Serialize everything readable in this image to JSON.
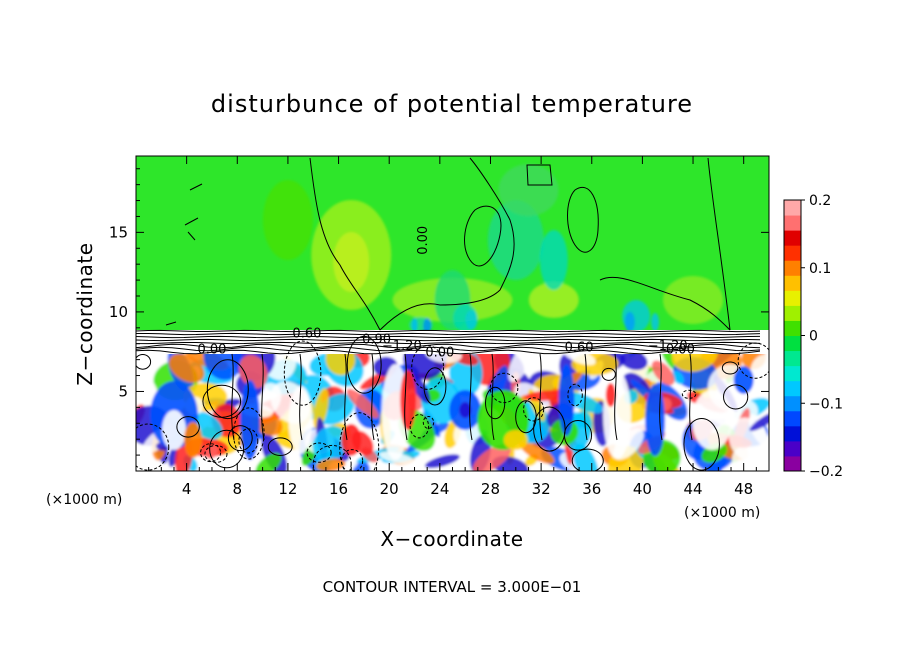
{
  "chart_data": {
    "type": "heatmap",
    "title": "disturbunce of potential temperature",
    "xlabel": "X−coordinate",
    "ylabel": "Z−coordinate",
    "x_unit": "(×1000 m)",
    "y_unit": "(×1000 m)",
    "xlim": [
      0,
      50
    ],
    "ylim": [
      0,
      19.8
    ],
    "x_ticks": [
      4,
      8,
      12,
      16,
      20,
      24,
      28,
      32,
      36,
      40,
      44,
      48
    ],
    "y_ticks": [
      5,
      10,
      15
    ],
    "colorbar": {
      "range": [
        -0.2,
        0.2
      ],
      "tick_values": [
        0.2,
        0.1,
        0,
        -0.1,
        -0.2
      ],
      "tick_labels": [
        "0.2",
        "0.1",
        "0",
        "−0.1",
        "−0.2"
      ],
      "colors": [
        "#8a00a0",
        "#4a00c8",
        "#0010d8",
        "#0048ff",
        "#0090ff",
        "#00c8ff",
        "#00e8d0",
        "#00e890",
        "#00e040",
        "#40e000",
        "#a0f000",
        "#e8f000",
        "#ffc000",
        "#ff8000",
        "#ff3000",
        "#e00000",
        "#ff7070",
        "#ffa8a8"
      ]
    },
    "contour_labels": [
      {
        "text": "0.00",
        "x": 23,
        "y": 14.5
      },
      {
        "text": "0.60",
        "x": 13.5,
        "y": 8.4
      },
      {
        "text": "0.60",
        "x": 35,
        "y": 7.5
      },
      {
        "text": "0.00",
        "x": 6,
        "y": 7.4
      },
      {
        "text": "0.00",
        "x": 24,
        "y": 7.2
      },
      {
        "text": "−1.20",
        "x": 21,
        "y": 7.6
      },
      {
        "text": "−1.20",
        "x": 42,
        "y": 7.6
      },
      {
        "text": "0.00",
        "x": 43,
        "y": 7.4
      },
      {
        "text": "0.90",
        "x": 19,
        "y": 8.0
      }
    ],
    "annotation": "CONTOUR INTERVAL = 3.000E−01"
  }
}
